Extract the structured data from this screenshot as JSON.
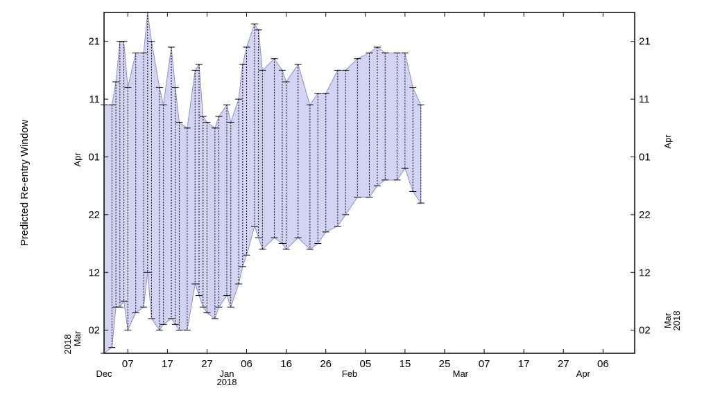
{
  "chart_data": {
    "type": "range",
    "y_axis_label": "Predicted Re-entry Window",
    "fill_color": "#d3d3f3",
    "line_color": "#9090c8",
    "x": [
      "2017-12-01",
      "2017-12-03",
      "2017-12-04",
      "2017-12-05",
      "2017-12-06",
      "2017-12-07",
      "2017-12-09",
      "2017-12-11",
      "2017-12-12",
      "2017-12-13",
      "2017-12-15",
      "2017-12-16",
      "2017-12-18",
      "2017-12-19",
      "2017-12-20",
      "2017-12-22",
      "2017-12-24",
      "2017-12-25",
      "2017-12-26",
      "2017-12-27",
      "2017-12-29",
      "2017-12-30",
      "2018-01-01",
      "2018-01-02",
      "2018-01-04",
      "2018-01-05",
      "2018-01-06",
      "2018-01-08",
      "2018-01-09",
      "2018-01-10",
      "2018-01-13",
      "2018-01-15",
      "2018-01-16",
      "2018-01-19",
      "2018-01-22",
      "2018-01-24",
      "2018-01-26",
      "2018-01-29",
      "2018-01-31",
      "2018-02-03",
      "2018-02-06",
      "2018-02-08",
      "2018-02-10",
      "2018-02-13",
      "2018-02-15",
      "2018-02-17",
      "2018-02-19"
    ],
    "upper": [
      "2018-04-10",
      "2018-04-10",
      "2018-04-14",
      "2018-04-21",
      "2018-04-21",
      "2018-04-13",
      "2018-04-19",
      "2018-04-19",
      "2018-04-26",
      "2018-04-21",
      "2018-04-13",
      "2018-04-10",
      "2018-04-20",
      "2018-04-13",
      "2018-04-07",
      "2018-04-06",
      "2018-04-16",
      "2018-04-17",
      "2018-04-08",
      "2018-04-07",
      "2018-04-06",
      "2018-04-08",
      "2018-04-10",
      "2018-04-07",
      "2018-04-11",
      "2018-04-17",
      "2018-04-20",
      "2018-04-24",
      "2018-04-23",
      "2018-04-16",
      "2018-04-18",
      "2018-04-16",
      "2018-04-14",
      "2018-04-17",
      "2018-04-10",
      "2018-04-12",
      "2018-04-12",
      "2018-04-16",
      "2018-04-16",
      "2018-04-18",
      "2018-04-19",
      "2018-04-20",
      "2018-04-19",
      "2018-04-19",
      "2018-04-19",
      "2018-04-13",
      "2018-04-10"
    ],
    "lower": [
      "2018-02-26",
      "2018-02-27",
      "2018-03-06",
      "2018-03-06",
      "2018-03-07",
      "2018-03-02",
      "2018-03-05",
      "2018-03-06",
      "2018-03-12",
      "2018-03-04",
      "2018-03-02",
      "2018-03-03",
      "2018-03-04",
      "2018-03-03",
      "2018-03-02",
      "2018-03-02",
      "2018-03-10",
      "2018-03-08",
      "2018-03-06",
      "2018-03-05",
      "2018-03-04",
      "2018-03-06",
      "2018-03-08",
      "2018-03-06",
      "2018-03-10",
      "2018-03-13",
      "2018-03-15",
      "2018-03-20",
      "2018-03-18",
      "2018-03-16",
      "2018-03-18",
      "2018-03-17",
      "2018-03-16",
      "2018-03-18",
      "2018-03-16",
      "2018-03-17",
      "2018-03-19",
      "2018-03-20",
      "2018-03-22",
      "2018-03-25",
      "2018-03-25",
      "2018-03-27",
      "2018-03-28",
      "2018-03-28",
      "2018-03-30",
      "2018-03-26",
      "2018-03-24"
    ],
    "xlim": [
      "2017-12-01",
      "2018-04-14"
    ],
    "xticks": [
      {
        "value": "2017-12-07",
        "label": "07"
      },
      {
        "value": "2017-12-17",
        "label": "17"
      },
      {
        "value": "2017-12-27",
        "label": "27"
      },
      {
        "value": "2018-01-06",
        "label": "06"
      },
      {
        "value": "2018-01-16",
        "label": "16"
      },
      {
        "value": "2018-01-26",
        "label": "26"
      },
      {
        "value": "2018-02-05",
        "label": "05"
      },
      {
        "value": "2018-02-15",
        "label": "15"
      },
      {
        "value": "2018-02-25",
        "label": "25"
      },
      {
        "value": "2018-03-07",
        "label": "07"
      },
      {
        "value": "2018-03-17",
        "label": "17"
      },
      {
        "value": "2018-03-27",
        "label": "27"
      },
      {
        "value": "2018-04-06",
        "label": "06"
      }
    ],
    "x_month_labels": [
      {
        "value": "2017-12-01",
        "label": "Dec"
      },
      {
        "value": "2018-01-01",
        "label": "Jan"
      },
      {
        "value": "2018-02-01",
        "label": "Feb"
      },
      {
        "value": "2018-03-01",
        "label": "Mar"
      },
      {
        "value": "2018-04-01",
        "label": "Apr"
      }
    ],
    "x_year_label": {
      "value": "2018-01-01",
      "label": "2018"
    },
    "ylim": [
      "2018-02-26",
      "2018-04-26"
    ],
    "yticks": [
      {
        "value": "2018-03-02",
        "label": "02"
      },
      {
        "value": "2018-03-12",
        "label": "12"
      },
      {
        "value": "2018-03-22",
        "label": "22"
      },
      {
        "value": "2018-04-01",
        "label": "01"
      },
      {
        "value": "2018-04-11",
        "label": "11"
      },
      {
        "value": "2018-04-21",
        "label": "21"
      }
    ],
    "y_month_labels": [
      {
        "value": "2018-03-01",
        "label": "Mar"
      },
      {
        "value": "2018-04-01",
        "label": "Apr"
      }
    ],
    "y_year_label": {
      "value": "2018-03-01",
      "label": "2018"
    }
  }
}
